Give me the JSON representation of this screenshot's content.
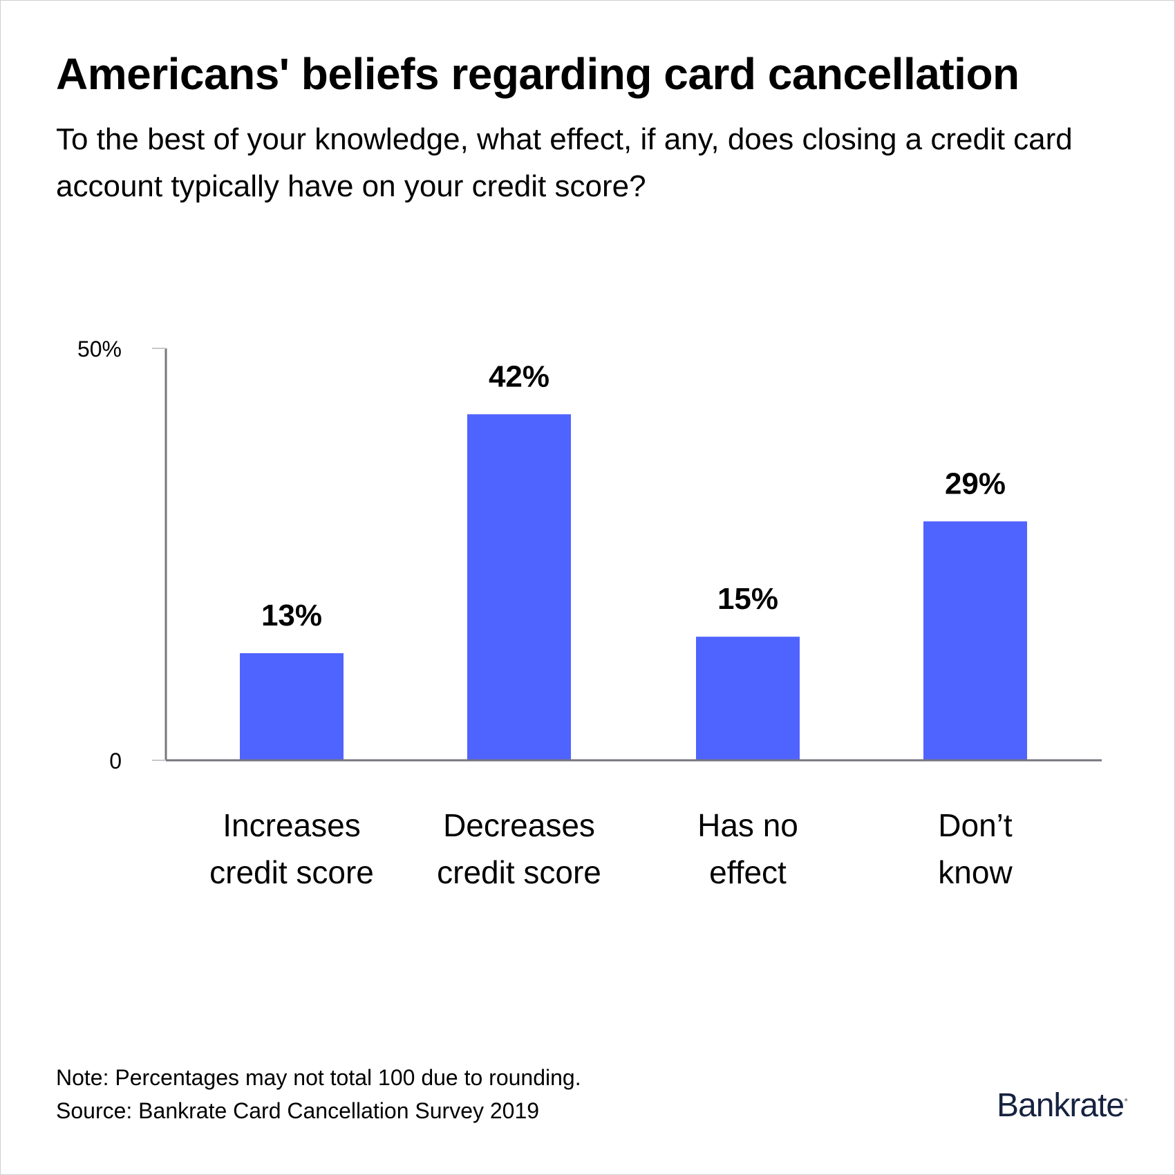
{
  "chart_data": {
    "type": "bar",
    "title": "Americans' beliefs regarding card cancellation",
    "subtitle": "To the best of your knowledge, what effect, if any, does closing a credit card account typically have on your credit score?",
    "categories": [
      [
        "Increases",
        "credit score"
      ],
      [
        "Decreases",
        "credit score"
      ],
      [
        "Has no",
        "effect"
      ],
      [
        "Don’t",
        "know"
      ]
    ],
    "values": [
      13,
      42,
      15,
      29
    ],
    "data_labels": [
      "13%",
      "42%",
      "15%",
      "29%"
    ],
    "ylim": [
      0,
      50
    ],
    "yticks": [
      {
        "value": 0,
        "label": "0"
      },
      {
        "value": 50,
        "label": "50%"
      }
    ],
    "grid": false,
    "bar_color": "#4f63ff",
    "axis_color": "#77767e"
  },
  "footer": {
    "note": "Note: Percentages may not total 100 due to rounding.",
    "source": "Source: Bankrate Card Cancellation Survey 2019",
    "logo": "Bankrate"
  }
}
